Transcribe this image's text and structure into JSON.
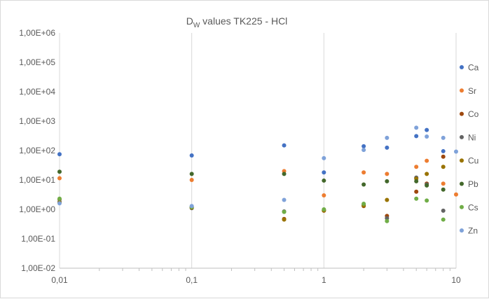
{
  "chart_data": {
    "type": "scatter",
    "title_main": "D",
    "title_sub": "W",
    "title_rest": " values TK225 - HCl",
    "x_scale": "log",
    "y_scale": "log",
    "xlim": [
      0.01,
      10
    ],
    "ylim": [
      0.01,
      1000000
    ],
    "x_ticks": [
      {
        "value": 0.01,
        "label": "0,01"
      },
      {
        "value": 0.1,
        "label": "0,1"
      },
      {
        "value": 1,
        "label": "1"
      },
      {
        "value": 10,
        "label": "10"
      }
    ],
    "y_ticks": [
      {
        "value": 0.01,
        "label": "1,00E-02"
      },
      {
        "value": 0.1,
        "label": "1,00E-01"
      },
      {
        "value": 1,
        "label": "1,00E+00"
      },
      {
        "value": 10,
        "label": "1,00E+01"
      },
      {
        "value": 100,
        "label": "1,00E+02"
      },
      {
        "value": 1000,
        "label": "1,00E+03"
      },
      {
        "value": 10000,
        "label": "1,00E+04"
      },
      {
        "value": 100000,
        "label": "1,00E+05"
      },
      {
        "value": 1000000,
        "label": "1,00E+06"
      }
    ],
    "grid": "vertical major lines",
    "legend_position": "right",
    "series": [
      {
        "name": "Ca",
        "color": "#4472C4",
        "points": [
          [
            0.01,
            75
          ],
          [
            0.1,
            68
          ],
          [
            0.5,
            150
          ],
          [
            1,
            18
          ],
          [
            2,
            140
          ],
          [
            3,
            125
          ],
          [
            5,
            310
          ],
          [
            6,
            500
          ],
          [
            8,
            95
          ]
        ]
      },
      {
        "name": "Sr",
        "color": "#ED7D31",
        "points": [
          [
            0.01,
            11.5
          ],
          [
            0.1,
            10
          ],
          [
            0.5,
            20
          ],
          [
            1,
            3
          ],
          [
            2,
            18
          ],
          [
            3,
            16
          ],
          [
            5,
            28
          ],
          [
            6,
            45
          ],
          [
            8,
            7.5
          ],
          [
            10,
            3.2
          ]
        ]
      },
      {
        "name": "Co",
        "color": "#9E480E",
        "points": [
          [
            0.01,
            2.2
          ],
          [
            0.1,
            1.2
          ],
          [
            0.5,
            0.47
          ],
          [
            1,
            0.9
          ],
          [
            2,
            1.3
          ],
          [
            3,
            0.6
          ],
          [
            5,
            4
          ],
          [
            6,
            7.5
          ],
          [
            8,
            62
          ]
        ]
      },
      {
        "name": "Ni",
        "color": "#636363",
        "points": [
          [
            0.01,
            1.8
          ],
          [
            0.1,
            1.1
          ],
          [
            0.5,
            0.85
          ],
          [
            1,
            0.95
          ],
          [
            2,
            1.4
          ],
          [
            3,
            0.5
          ],
          [
            5,
            12
          ],
          [
            6,
            7
          ],
          [
            8,
            0.9
          ]
        ]
      },
      {
        "name": "Cu",
        "color": "#997300",
        "points": [
          [
            0.01,
            1.7
          ],
          [
            0.1,
            1.15
          ],
          [
            0.5,
            0.45
          ],
          [
            1,
            0.92
          ],
          [
            2,
            1.35
          ],
          [
            3,
            2.1
          ],
          [
            5,
            11
          ],
          [
            6,
            16
          ],
          [
            8,
            28
          ]
        ]
      },
      {
        "name": "Pb",
        "color": "#43682B",
        "points": [
          [
            0.01,
            19
          ],
          [
            0.1,
            16
          ],
          [
            0.5,
            16
          ],
          [
            1,
            9.5
          ],
          [
            2,
            7
          ],
          [
            3,
            9
          ],
          [
            5,
            9
          ],
          [
            6,
            6.5
          ],
          [
            8,
            4.7
          ]
        ]
      },
      {
        "name": "Cs",
        "color": "#70AD47",
        "points": [
          [
            0.01,
            2.3
          ],
          [
            0.1,
            1.2
          ],
          [
            0.5,
            0.82
          ],
          [
            1,
            1
          ],
          [
            2,
            1.55
          ],
          [
            3,
            0.4
          ],
          [
            5,
            2.3
          ],
          [
            6,
            2
          ],
          [
            8,
            0.45
          ]
        ]
      },
      {
        "name": "Zn",
        "color": "#7FA2D9",
        "points": [
          [
            0.01,
            1.6
          ],
          [
            0.1,
            1.3
          ],
          [
            0.5,
            2.1
          ],
          [
            1,
            55
          ],
          [
            2,
            105
          ],
          [
            3,
            270
          ],
          [
            5,
            600
          ],
          [
            6,
            300
          ],
          [
            8,
            270
          ],
          [
            10,
            92
          ]
        ]
      }
    ]
  }
}
